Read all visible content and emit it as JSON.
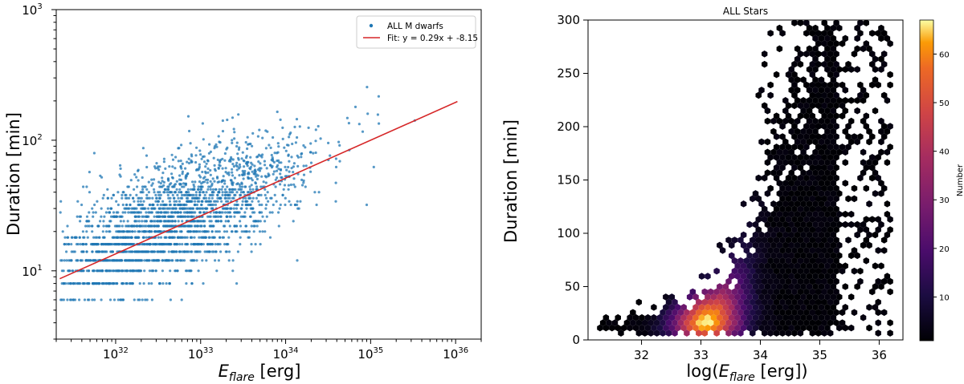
{
  "chart_data": [
    {
      "type": "scatter",
      "xscale": "log",
      "yscale": "log",
      "xlabel_main": "E",
      "xlabel_sub": "flare",
      "xlabel_unit": " [erg]",
      "ylabel": "Duration [min]",
      "xlim": [
        2e+31,
        2e+36
      ],
      "ylim": [
        3,
        1000
      ],
      "x_ticks": [
        {
          "value": 1e+32,
          "base": "10",
          "exp": "32"
        },
        {
          "value": 1e+33,
          "base": "10",
          "exp": "33"
        },
        {
          "value": 1e+34,
          "base": "10",
          "exp": "34"
        },
        {
          "value": 1e+35,
          "base": "10",
          "exp": "35"
        },
        {
          "value": 1e+36,
          "base": "10",
          "exp": "36"
        }
      ],
      "y_ticks": [
        {
          "value": 10,
          "base": "10",
          "exp": "1"
        },
        {
          "value": 100,
          "base": "10",
          "exp": "2"
        },
        {
          "value": 1000,
          "base": "10",
          "exp": "3"
        }
      ],
      "legend": {
        "position": "top-right",
        "entries": [
          "ALL M dwarfs",
          "Fit: y = 0.29x + -8.15"
        ]
      },
      "series": [
        {
          "name": "ALL M dwarfs",
          "color": "#1f77b4",
          "kind": "points"
        },
        {
          "name": "Fit: y = 0.29x + -8.15",
          "color": "#d62728",
          "kind": "line",
          "slope": 0.29,
          "intercept": -8.15,
          "x_range": [
            2.2e+31,
            1.05e+36
          ]
        }
      ]
    },
    {
      "type": "heatmap",
      "title": "ALL Stars",
      "xlabel_prefix": "log(",
      "xlabel_main": "E",
      "xlabel_sub": "flare",
      "xlabel_suffix": " [erg])",
      "ylabel": "Duration [min]",
      "xlim": [
        31.1,
        36.4
      ],
      "ylim": [
        0,
        300
      ],
      "x_ticks": [
        "32",
        "33",
        "34",
        "35",
        "36"
      ],
      "y_ticks": [
        "0",
        "50",
        "100",
        "150",
        "200",
        "250",
        "300"
      ],
      "colorbar": {
        "label": "Number",
        "range": [
          1,
          67
        ],
        "ticks": [
          "10",
          "20",
          "30",
          "40",
          "50",
          "60"
        ],
        "colormap": "inferno"
      }
    }
  ]
}
